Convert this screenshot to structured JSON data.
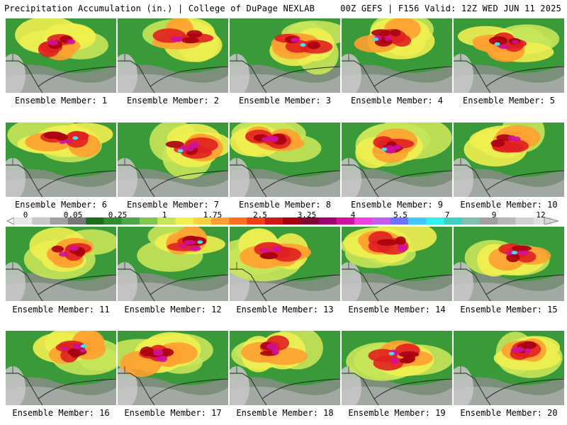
{
  "header": {
    "left": "Precipitation Accumulation (in.) | College of DuPage NEXLAB",
    "right": "00Z GEFS | F156 Valid: 12Z WED JUN 11 2025"
  },
  "panels": [
    {
      "label": "Ensemble Member: 1"
    },
    {
      "label": "Ensemble Member: 2"
    },
    {
      "label": "Ensemble Member: 3"
    },
    {
      "label": "Ensemble Member: 4"
    },
    {
      "label": "Ensemble Member: 5"
    },
    {
      "label": "Ensemble Member: 6"
    },
    {
      "label": "Ensemble Member: 7"
    },
    {
      "label": "Ensemble Member: 8"
    },
    {
      "label": "Ensemble Member: 9"
    },
    {
      "label": "Ensemble Member: 10"
    },
    {
      "label": "Ensemble Member: 11"
    },
    {
      "label": "Ensemble Member: 12"
    },
    {
      "label": "Ensemble Member: 13"
    },
    {
      "label": "Ensemble Member: 14"
    },
    {
      "label": "Ensemble Member: 15"
    },
    {
      "label": "Ensemble Member: 16"
    },
    {
      "label": "Ensemble Member: 17"
    },
    {
      "label": "Ensemble Member: 18"
    },
    {
      "label": "Ensemble Member: 19"
    },
    {
      "label": "Ensemble Member: 20"
    }
  ],
  "colorbar": {
    "tick_labels": [
      "0",
      "0.05",
      "0.25",
      "1",
      "1.75",
      "2.5",
      "3.25",
      "4",
      "5.5",
      "7",
      "9",
      "12"
    ],
    "colors": [
      "#e8e8e8",
      "#c8c8c8",
      "#a0a0a0",
      "#787878",
      "#1e6e1e",
      "#2f8f2f",
      "#4aa84a",
      "#7ec850",
      "#c8e65a",
      "#f0f050",
      "#ffd040",
      "#ffa030",
      "#ff7020",
      "#f04018",
      "#d01818",
      "#a80010",
      "#800030",
      "#a00070",
      "#d010a0",
      "#f040e0",
      "#c060f0",
      "#7070ff",
      "#40c8ff",
      "#30f0f0",
      "#40d0c0",
      "#80c0b0",
      "#a0a0a0",
      "#b8b8b8",
      "#d0d0d0",
      "#e0e0e0"
    ]
  }
}
